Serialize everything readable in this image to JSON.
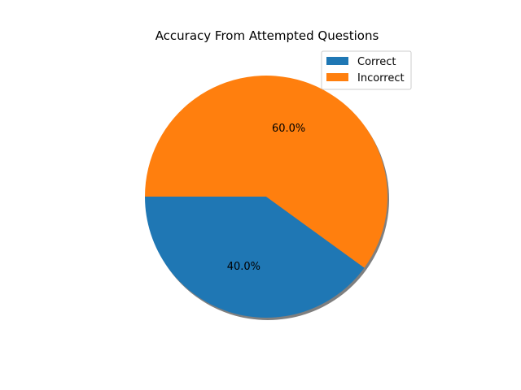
{
  "chart_data": {
    "type": "pie",
    "title": "Accuracy From Attempted Questions",
    "labels": [
      "Correct",
      "Incorrect"
    ],
    "values": [
      40.0,
      60.0
    ],
    "display_labels": [
      "40.0%",
      "60.0%"
    ],
    "colors": [
      "#1f77b4",
      "#ff7f0e"
    ],
    "start_angle_deg": 180,
    "shadow": true,
    "legend_position": "upper-right"
  }
}
